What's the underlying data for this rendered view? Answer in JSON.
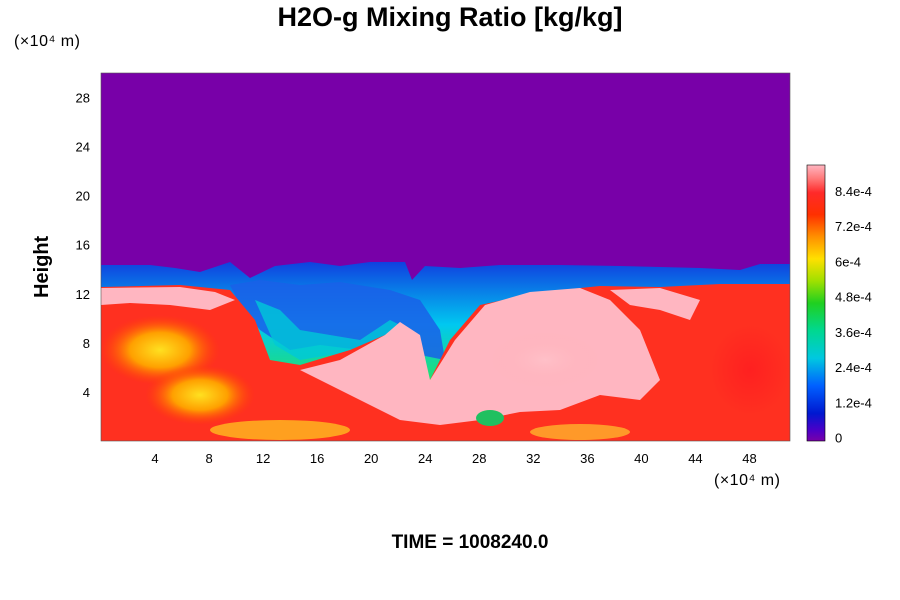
{
  "chart_data": {
    "type": "heatmap",
    "title": "H2O-g Mixing Ratio [kg/kg]",
    "ylabel": "Height",
    "y_unit": "(×10⁴ m)",
    "x_unit": "(×10⁴ m)",
    "xlim": [
      0,
      51
    ],
    "ylim": [
      0,
      30
    ],
    "x_ticks": [
      "4",
      "8",
      "12",
      "16",
      "20",
      "24",
      "28",
      "32",
      "36",
      "40",
      "44",
      "48"
    ],
    "y_ticks": [
      "4",
      "8",
      "12",
      "16",
      "20",
      "24",
      "28"
    ],
    "colorbar": {
      "range": [
        0,
        0.00092
      ],
      "ticks": [
        "0",
        "1.2e-4",
        "2.4e-4",
        "3.6e-4",
        "4.8e-4",
        "6e-4",
        "7.2e-4",
        "8.4e-4"
      ]
    },
    "annotation": "TIME = 1008240.0",
    "field_summary": {
      "upper_region_value": 0,
      "moist_layer_top_height": 13,
      "lower_region_value_range": [
        0.0006,
        0.00092
      ]
    }
  },
  "colors": {
    "dry": "#7800a8",
    "max": "#ffb6c1"
  }
}
